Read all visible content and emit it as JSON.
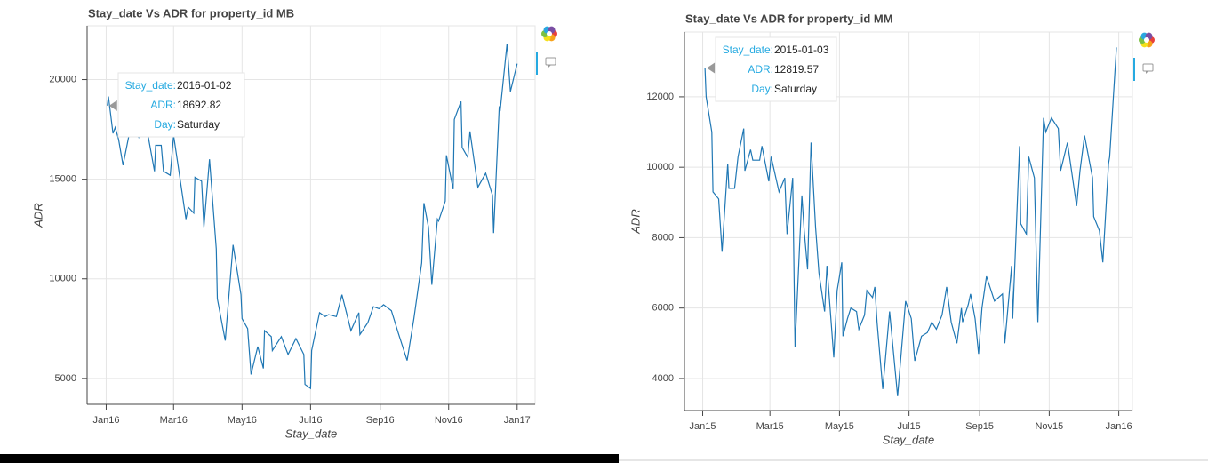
{
  "chart_data": [
    {
      "type": "line",
      "title": "Stay_date Vs ADR for property_id MB",
      "x_label": "Stay_date",
      "y_label": "ADR",
      "color": "#1f77b4",
      "x": [
        "2016-01-02",
        "2016-01-03",
        "2016-01-07",
        "2016-01-09",
        "2016-01-12",
        "2016-01-16",
        "2016-01-23",
        "2016-01-30",
        "2016-02-05",
        "2016-02-13",
        "2016-02-14",
        "2016-02-19",
        "2016-02-21",
        "2016-02-27",
        "2016-03-01",
        "2016-03-05",
        "2016-03-12",
        "2016-03-14",
        "2016-03-19",
        "2016-03-20",
        "2016-03-26",
        "2016-03-28",
        "2016-04-02",
        "2016-04-08",
        "2016-04-09",
        "2016-04-16",
        "2016-04-23",
        "2016-04-30",
        "2016-05-01",
        "2016-05-06",
        "2016-05-09",
        "2016-05-15",
        "2016-05-20",
        "2016-05-21",
        "2016-05-27",
        "2016-05-28",
        "2016-06-05",
        "2016-06-11",
        "2016-06-18",
        "2016-06-25",
        "2016-06-26",
        "2016-07-01",
        "2016-07-02",
        "2016-07-09",
        "2016-07-14",
        "2016-07-17",
        "2016-07-24",
        "2016-07-29",
        "2016-08-06",
        "2016-08-13",
        "2016-08-14",
        "2016-08-21",
        "2016-08-26",
        "2016-08-31",
        "2016-09-04",
        "2016-09-11",
        "2016-09-17",
        "2016-09-25",
        "2016-10-01",
        "2016-10-08",
        "2016-10-10",
        "2016-10-14",
        "2016-10-17",
        "2016-10-22",
        "2016-10-23",
        "2016-10-29",
        "2016-10-30",
        "2016-11-05",
        "2016-11-06",
        "2016-11-12",
        "2016-11-13",
        "2016-11-18",
        "2016-11-20",
        "2016-11-27",
        "2016-12-04",
        "2016-12-10",
        "2016-12-11",
        "2016-12-16",
        "2016-12-17",
        "2016-12-23",
        "2016-12-26",
        "2017-01-01"
      ],
      "values": [
        18692.82,
        19150,
        17300,
        17600,
        17000,
        15700,
        17700,
        17100,
        17900,
        15400,
        16700,
        16700,
        15400,
        15200,
        17200,
        15700,
        13000,
        13600,
        13300,
        15100,
        14900,
        12600,
        16000,
        11500,
        9000,
        6900,
        11700,
        9200,
        8000,
        7500,
        5200,
        6600,
        5500,
        7400,
        7100,
        6400,
        7100,
        6200,
        7000,
        6200,
        4700,
        4500,
        6400,
        8300,
        8100,
        8200,
        8100,
        9200,
        7400,
        8300,
        7200,
        7800,
        8600,
        8500,
        8700,
        8400,
        7300,
        5900,
        8000,
        10800,
        13800,
        12600,
        9700,
        13000,
        12900,
        13900,
        16200,
        14500,
        18000,
        18900,
        16600,
        16100,
        17400,
        14600,
        15300,
        14200,
        12300,
        18600,
        18500,
        21800,
        19400,
        20800
      ],
      "xlim": [
        "2015-12-15",
        "2017-01-17"
      ],
      "xticks": [
        {
          "value": "2016-01-01",
          "label": "Jan16"
        },
        {
          "value": "2016-03-01",
          "label": "Mar16"
        },
        {
          "value": "2016-05-01",
          "label": "May16"
        },
        {
          "value": "2016-07-01",
          "label": "Jul16"
        },
        {
          "value": "2016-09-01",
          "label": "Sep16"
        },
        {
          "value": "2016-11-01",
          "label": "Nov16"
        },
        {
          "value": "2017-01-01",
          "label": "Jan17"
        }
      ],
      "ylim": [
        3700,
        22700
      ],
      "yticks": [
        5000,
        10000,
        15000,
        20000
      ],
      "grid": true,
      "tooltip": [
        {
          "label": "Stay_date:",
          "value": "2016-01-02"
        },
        {
          "label": "ADR:",
          "value": "18692.82"
        },
        {
          "label": "Day:",
          "value": "Saturday"
        }
      ]
    },
    {
      "type": "line",
      "title": "Stay_date Vs ADR for property_id MM",
      "x_label": "Stay_date",
      "y_label": "ADR",
      "color": "#1f77b4",
      "x": [
        "2015-01-03",
        "2015-01-04",
        "2015-01-09",
        "2015-01-10",
        "2015-01-15",
        "2015-01-18",
        "2015-01-23",
        "2015-01-24",
        "2015-01-29",
        "2015-02-01",
        "2015-02-06",
        "2015-02-07",
        "2015-02-12",
        "2015-02-14",
        "2015-02-20",
        "2015-02-22",
        "2015-02-28",
        "2015-03-02",
        "2015-03-09",
        "2015-03-14",
        "2015-03-16",
        "2015-03-21",
        "2015-03-23",
        "2015-03-29",
        "2015-03-31",
        "2015-04-03",
        "2015-04-06",
        "2015-04-10",
        "2015-04-13",
        "2015-04-18",
        "2015-04-20",
        "2015-04-26",
        "2015-04-29",
        "2015-05-03",
        "2015-05-04",
        "2015-05-08",
        "2015-05-11",
        "2015-05-16",
        "2015-05-18",
        "2015-05-23",
        "2015-05-25",
        "2015-05-30",
        "2015-06-01",
        "2015-06-03",
        "2015-06-08",
        "2015-06-14",
        "2015-06-21",
        "2015-06-28",
        "2015-07-03",
        "2015-07-06",
        "2015-07-12",
        "2015-07-17",
        "2015-07-21",
        "2015-07-25",
        "2015-07-30",
        "2015-08-03",
        "2015-08-07",
        "2015-08-12",
        "2015-08-16",
        "2015-08-17",
        "2015-08-22",
        "2015-08-24",
        "2015-08-28",
        "2015-08-31",
        "2015-09-03",
        "2015-09-07",
        "2015-09-14",
        "2015-09-21",
        "2015-09-23",
        "2015-09-29",
        "2015-09-30",
        "2015-10-06",
        "2015-10-07",
        "2015-10-12",
        "2015-10-14",
        "2015-10-19",
        "2015-10-22",
        "2015-10-27",
        "2015-10-29",
        "2015-11-03",
        "2015-11-09",
        "2015-11-11",
        "2015-11-17",
        "2015-11-25",
        "2015-11-28",
        "2015-12-02",
        "2015-12-09",
        "2015-12-10",
        "2015-12-15",
        "2015-12-18",
        "2015-12-23",
        "2015-12-24",
        "2015-12-30"
      ],
      "values": [
        12819.57,
        12000,
        11000,
        9300,
        9100,
        7600,
        10100,
        9400,
        9400,
        10300,
        11100,
        9900,
        10500,
        10200,
        10200,
        10600,
        9600,
        10300,
        9300,
        9700,
        8100,
        9700,
        4900,
        9200,
        8200,
        7100,
        10700,
        8300,
        7000,
        5900,
        7200,
        4600,
        6500,
        7300,
        5200,
        5700,
        6000,
        5900,
        5400,
        5800,
        6500,
        6300,
        6600,
        5600,
        3700,
        5900,
        3500,
        6200,
        5700,
        4500,
        5200,
        5300,
        5600,
        5400,
        5800,
        6600,
        5600,
        5000,
        6000,
        5600,
        6100,
        6400,
        5700,
        4700,
        6000,
        6900,
        6200,
        6400,
        5000,
        7200,
        5700,
        10600,
        8400,
        8100,
        10300,
        9700,
        5600,
        11400,
        11000,
        11400,
        11100,
        9900,
        10700,
        8900,
        9900,
        10900,
        9700,
        8600,
        8200,
        7300,
        10100,
        10300,
        13400
      ],
      "xlim": [
        "2014-12-16",
        "2016-01-13"
      ],
      "xticks": [
        {
          "value": "2015-01-01",
          "label": "Jan15"
        },
        {
          "value": "2015-03-01",
          "label": "Mar15"
        },
        {
          "value": "2015-05-01",
          "label": "May15"
        },
        {
          "value": "2015-07-01",
          "label": "Jul15"
        },
        {
          "value": "2015-09-01",
          "label": "Sep15"
        },
        {
          "value": "2015-11-01",
          "label": "Nov15"
        },
        {
          "value": "2016-01-01",
          "label": "Jan16"
        }
      ],
      "ylim": [
        3090,
        13840
      ],
      "yticks": [
        4000,
        6000,
        8000,
        10000,
        12000
      ],
      "grid": true,
      "tooltip": [
        {
          "label": "Stay_date:",
          "value": "2015-01-03"
        },
        {
          "label": "ADR:",
          "value": "12819.57"
        },
        {
          "label": "Day:",
          "value": "Saturday"
        }
      ]
    }
  ]
}
